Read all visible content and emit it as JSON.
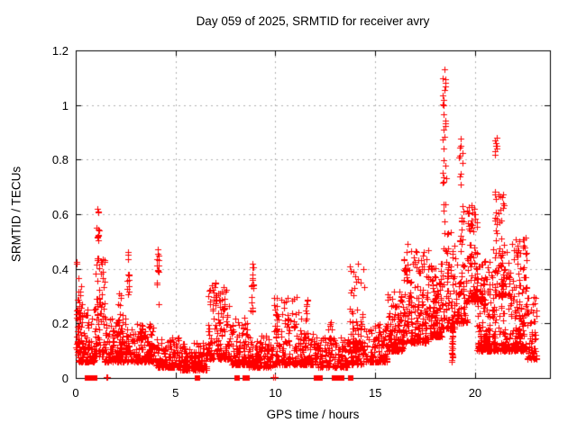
{
  "chart_data": {
    "type": "scatter",
    "title": "Day 059 of 2025, SRMTID for receiver avry",
    "xlabel": "GPS time / hours",
    "ylabel": "SRMTID / TECUs",
    "xlim": [
      0,
      23.75
    ],
    "ylim": [
      0,
      1.2
    ],
    "xticks": [
      0,
      5,
      10,
      15,
      20
    ],
    "xticklabels": [
      "0",
      "5",
      "10",
      "15",
      "20"
    ],
    "yticks": [
      0,
      0.2,
      0.4,
      0.6,
      0.8,
      1.0,
      1.2
    ],
    "yticklabels": [
      "0",
      "0.2",
      "0.4",
      "0.6",
      "0.8",
      "1",
      "1.2"
    ],
    "grid": {
      "show": true,
      "style": "dashed",
      "color": "#b2b2b2"
    },
    "axis_color": "#000000",
    "marker": {
      "shape": "plus",
      "color": "#ff0000",
      "size": 7
    },
    "zero_marker": {
      "shape": "filled-square",
      "color": "#ff0000",
      "size": 6
    },
    "seed": 59,
    "series_name": "SRMTID",
    "clusters": [
      {
        "kind": "cluster",
        "x0": 0.02,
        "x1": 0.35,
        "y0": 0.08,
        "y1": 0.44,
        "n": 50,
        "p": 1.7
      },
      {
        "kind": "cluster",
        "x0": 0.1,
        "x1": 1.0,
        "y0": 0.06,
        "y1": 0.26,
        "n": 110,
        "p": 2.2
      },
      {
        "kind": "cluster",
        "x0": 0.95,
        "x1": 1.45,
        "y0": 0.08,
        "y1": 0.47,
        "n": 75,
        "p": 2.0
      },
      {
        "kind": "spike",
        "x": 1.1,
        "w": 0.12,
        "y0": 0.45,
        "y1": 0.63,
        "n": 10
      },
      {
        "kind": "cluster",
        "x0": 1.45,
        "x1": 2.55,
        "y0": 0.06,
        "y1": 0.22,
        "n": 150,
        "p": 2.2
      },
      {
        "kind": "cluster",
        "x0": 2.1,
        "x1": 2.35,
        "y0": 0.16,
        "y1": 0.33,
        "n": 12,
        "p": 1.5
      },
      {
        "kind": "spike",
        "x": 2.62,
        "w": 0.1,
        "y0": 0.3,
        "y1": 0.46,
        "n": 11
      },
      {
        "kind": "cluster",
        "x0": 2.55,
        "x1": 3.9,
        "y0": 0.06,
        "y1": 0.2,
        "n": 160,
        "p": 2.4
      },
      {
        "kind": "cluster",
        "x0": 3.05,
        "x1": 3.3,
        "y0": 0.14,
        "y1": 0.26,
        "n": 10,
        "p": 1.5
      },
      {
        "kind": "spike",
        "x": 4.12,
        "w": 0.12,
        "y0": 0.27,
        "y1": 0.47,
        "n": 13
      },
      {
        "kind": "cluster",
        "x0": 3.9,
        "x1": 5.2,
        "y0": 0.04,
        "y1": 0.15,
        "n": 150,
        "p": 2.0
      },
      {
        "kind": "cluster",
        "x0": 5.2,
        "x1": 6.6,
        "y0": 0.03,
        "y1": 0.13,
        "n": 170,
        "p": 2.0
      },
      {
        "kind": "cluster",
        "x0": 6.6,
        "x1": 7.7,
        "y0": 0.07,
        "y1": 0.36,
        "n": 150,
        "p": 2.5
      },
      {
        "kind": "cluster",
        "x0": 7.7,
        "x1": 8.65,
        "y0": 0.05,
        "y1": 0.22,
        "n": 120,
        "p": 2.4
      },
      {
        "kind": "spike",
        "x": 8.85,
        "w": 0.15,
        "y0": 0.24,
        "y1": 0.42,
        "n": 16
      },
      {
        "kind": "cluster",
        "x0": 8.65,
        "x1": 9.9,
        "y0": 0.04,
        "y1": 0.16,
        "n": 140,
        "p": 2.2
      },
      {
        "kind": "cluster",
        "x0": 9.9,
        "x1": 11.3,
        "y0": 0.05,
        "y1": 0.3,
        "n": 170,
        "p": 2.8
      },
      {
        "kind": "cluster",
        "x0": 11.3,
        "x1": 12.1,
        "y0": 0.05,
        "y1": 0.17,
        "n": 100,
        "p": 2.2
      },
      {
        "kind": "spike",
        "x": 11.55,
        "w": 0.1,
        "y0": 0.17,
        "y1": 0.29,
        "n": 8
      },
      {
        "kind": "cluster",
        "x0": 12.1,
        "x1": 13.6,
        "y0": 0.04,
        "y1": 0.15,
        "n": 140,
        "p": 2.2
      },
      {
        "kind": "cluster",
        "x0": 12.65,
        "x1": 12.85,
        "y0": 0.12,
        "y1": 0.24,
        "n": 8,
        "p": 1.5
      },
      {
        "kind": "cluster",
        "x0": 13.7,
        "x1": 14.45,
        "y0": 0.1,
        "y1": 0.42,
        "n": 65,
        "p": 2.5
      },
      {
        "kind": "cluster",
        "x0": 13.6,
        "x1": 14.5,
        "y0": 0.05,
        "y1": 0.15,
        "n": 60,
        "p": 2.0
      },
      {
        "kind": "cluster",
        "x0": 14.5,
        "x1": 15.6,
        "y0": 0.06,
        "y1": 0.2,
        "n": 120,
        "p": 2.4
      },
      {
        "kind": "cluster",
        "x0": 15.6,
        "x1": 16.4,
        "y0": 0.1,
        "y1": 0.32,
        "n": 130,
        "p": 2.2
      },
      {
        "kind": "cluster",
        "x0": 16.4,
        "x1": 17.7,
        "y0": 0.13,
        "y1": 0.47,
        "n": 190,
        "p": 2.3
      },
      {
        "kind": "cluster",
        "x0": 17.7,
        "x1": 18.35,
        "y0": 0.15,
        "y1": 0.42,
        "n": 130,
        "p": 2.2
      },
      {
        "kind": "spike",
        "x": 18.45,
        "w": 0.18,
        "y0": 0.55,
        "y1": 1.13,
        "n": 26
      },
      {
        "kind": "cluster",
        "x0": 18.35,
        "x1": 19.0,
        "y0": 0.18,
        "y1": 0.55,
        "n": 90,
        "p": 2.0
      },
      {
        "kind": "spike",
        "x": 18.85,
        "w": 0.08,
        "y0": 0.05,
        "y1": 0.22,
        "n": 25
      },
      {
        "kind": "spike",
        "x": 19.3,
        "w": 0.2,
        "y0": 0.45,
        "y1": 0.88,
        "n": 22
      },
      {
        "kind": "cluster",
        "x0": 19.0,
        "x1": 19.6,
        "y0": 0.2,
        "y1": 0.45,
        "n": 70,
        "p": 2.0
      },
      {
        "kind": "cluster",
        "x0": 19.6,
        "x1": 20.15,
        "y0": 0.28,
        "y1": 0.65,
        "n": 90,
        "p": 2.0
      },
      {
        "kind": "cluster",
        "x0": 20.1,
        "x1": 20.85,
        "y0": 0.1,
        "y1": 0.45,
        "n": 130,
        "p": 2.4
      },
      {
        "kind": "cluster",
        "x0": 20.45,
        "x1": 20.6,
        "y0": 0.11,
        "y1": 0.16,
        "n": 25,
        "p": 1.0
      },
      {
        "kind": "cluster",
        "x0": 20.25,
        "x1": 20.4,
        "y0": 0.28,
        "y1": 0.33,
        "n": 15,
        "p": 1.0
      },
      {
        "kind": "spike",
        "x": 21.05,
        "w": 0.15,
        "y0": 0.3,
        "y1": 0.88,
        "n": 26
      },
      {
        "kind": "cluster",
        "x0": 21.15,
        "x1": 21.45,
        "y0": 0.3,
        "y1": 0.72,
        "n": 40,
        "p": 1.8
      },
      {
        "kind": "cluster",
        "x0": 20.85,
        "x1": 22.0,
        "y0": 0.1,
        "y1": 0.5,
        "n": 170,
        "p": 2.5
      },
      {
        "kind": "cluster",
        "x0": 22.0,
        "x1": 22.6,
        "y0": 0.1,
        "y1": 0.52,
        "n": 120,
        "p": 2.5
      },
      {
        "kind": "cluster",
        "x0": 22.6,
        "x1": 23.1,
        "y0": 0.07,
        "y1": 0.3,
        "n": 60,
        "p": 2.3
      }
    ],
    "notable_points": [
      [
        0.05,
        0.42
      ],
      [
        1.1,
        0.62
      ],
      [
        2.62,
        0.46
      ],
      [
        4.12,
        0.47
      ],
      [
        7.0,
        0.35
      ],
      [
        8.85,
        0.42
      ],
      [
        14.15,
        0.42
      ],
      [
        16.6,
        0.49
      ],
      [
        18.45,
        1.13
      ],
      [
        18.5,
        1.08
      ],
      [
        18.42,
        1.02
      ],
      [
        19.3,
        0.75
      ],
      [
        19.95,
        0.62
      ],
      [
        21.1,
        0.88
      ],
      [
        21.1,
        0.85
      ],
      [
        22.2,
        0.5
      ]
    ],
    "zero_square_hours": [
      0.6,
      0.72,
      0.95,
      6.08,
      8.1,
      8.5,
      8.6,
      12.05,
      12.25,
      12.95,
      13.15,
      13.3,
      13.75
    ],
    "zero_plus_hours": [
      1.52,
      1.6,
      9.9,
      9.97
    ]
  }
}
